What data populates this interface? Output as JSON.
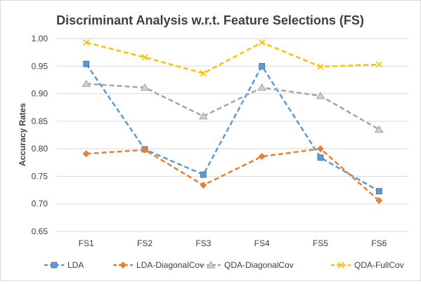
{
  "chart_data": {
    "type": "line",
    "title": "Discriminant Analysis w.r.t. Feature Selections (FS)",
    "xlabel": "",
    "ylabel": "Accuracy Rates",
    "categories": [
      "FS1",
      "FS2",
      "FS3",
      "FS4",
      "FS5",
      "FS6"
    ],
    "ylim": [
      0.65,
      1.0
    ],
    "yticks": [
      "0.65",
      "0.70",
      "0.75",
      "0.80",
      "0.85",
      "0.90",
      "0.95",
      "1.00"
    ],
    "grid": true,
    "legend_position": "bottom",
    "series": [
      {
        "name": "LDA",
        "color": "#5b9bd5",
        "marker": "square",
        "values": [
          0.954,
          0.799,
          0.753,
          0.95,
          0.784,
          0.723
        ]
      },
      {
        "name": "LDA-DiagonalCov",
        "color": "#ed7d31",
        "marker": "diamond",
        "values": [
          0.791,
          0.798,
          0.734,
          0.786,
          0.8,
          0.706
        ]
      },
      {
        "name": "QDA-DiagonalCov",
        "color": "#a5a5a5",
        "marker": "triangle",
        "values": [
          0.918,
          0.911,
          0.859,
          0.911,
          0.896,
          0.835
        ]
      },
      {
        "name": "QDA-FullCov",
        "color": "#ffc000",
        "marker": "x",
        "values": [
          0.993,
          0.966,
          0.937,
          0.993,
          0.949,
          0.953
        ]
      }
    ]
  }
}
